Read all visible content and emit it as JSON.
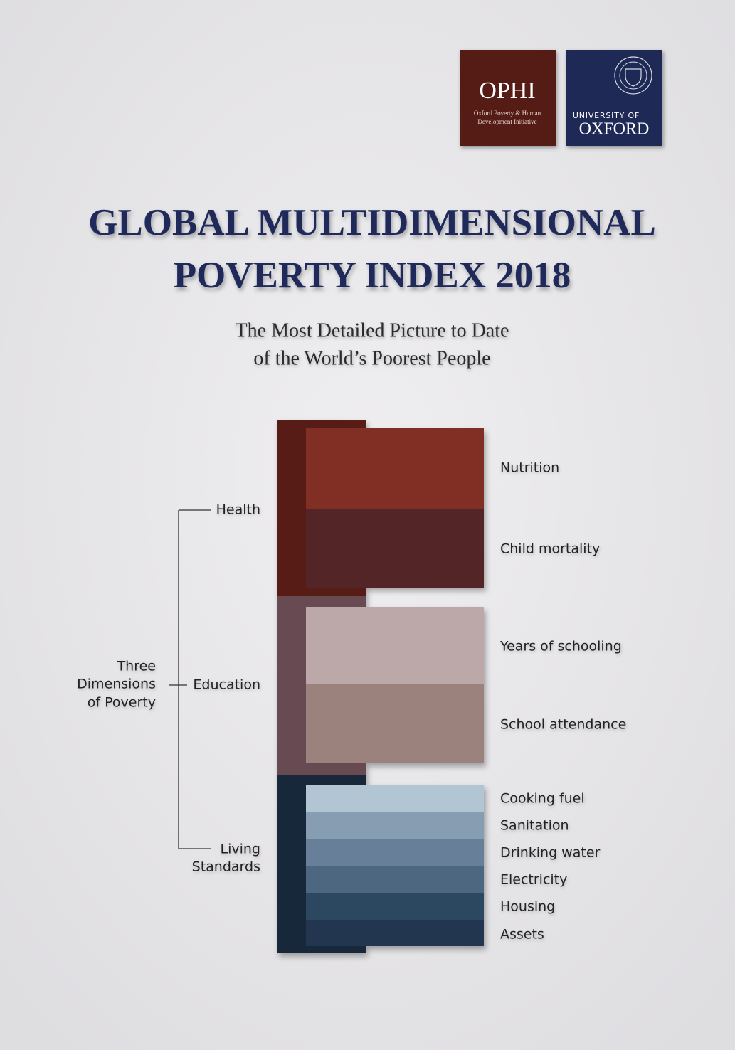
{
  "logos": {
    "ophi": {
      "name": "OPHI",
      "lines": [
        "Oxford Poverty & Human",
        "Development Initiative"
      ]
    },
    "oxford": {
      "lines": [
        "UNIVERSITY OF",
        "OXFORD"
      ]
    }
  },
  "header": {
    "title_lines": [
      "GLOBAL MULTIDIMENSIONAL",
      "POVERTY INDEX 2018"
    ],
    "subtitle_lines": [
      "The Most Detailed Picture to Date",
      "of the World’s Poorest People"
    ]
  },
  "diagram": {
    "root_lines": [
      "Three",
      "Dimensions",
      "of Poverty"
    ],
    "dimensions": [
      {
        "label_lines": [
          "Health"
        ],
        "indicators": [
          "Nutrition",
          "Child mortality"
        ]
      },
      {
        "label_lines": [
          "Education"
        ],
        "indicators": [
          "Years of schooling",
          "School attendance"
        ]
      },
      {
        "label_lines": [
          "Living",
          "Standards"
        ],
        "indicators": [
          "Cooking fuel",
          "Sanitation",
          "Drinking water",
          "Electricity",
          "Housing",
          "Assets"
        ]
      }
    ]
  }
}
